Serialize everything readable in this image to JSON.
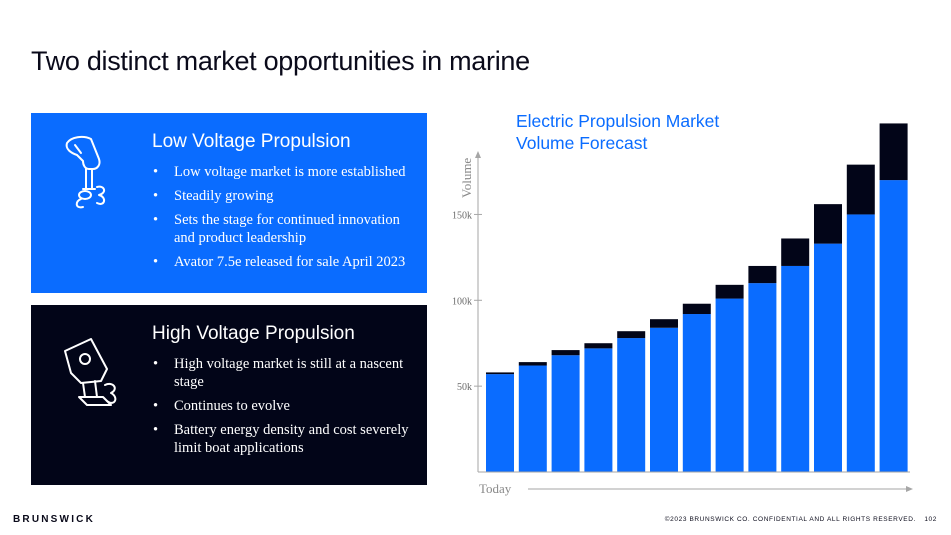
{
  "slide": {
    "title": "Two distinct market opportunities in marine"
  },
  "panels": {
    "low": {
      "heading": "Low Voltage Propulsion",
      "icon": "outboard-motor-icon",
      "bullets": [
        "Low voltage market is more established",
        "Steadily growing",
        "Sets the stage for continued innovation and product leadership",
        "Avator 7.5e released for sale April 2023"
      ]
    },
    "high": {
      "heading": "High Voltage Propulsion",
      "icon": "high-voltage-motor-icon",
      "bullets": [
        "High voltage market is still at a nascent stage",
        "Continues to evolve",
        "Battery energy density and cost severely limit boat applications"
      ]
    }
  },
  "colors": {
    "accent": "#0a6cff",
    "dark": "#020518",
    "axis": "#a6a6a6"
  },
  "chart_data": {
    "type": "bar",
    "title": "Electric Propulsion Market Volume Forecast",
    "xlabel": "Today",
    "ylabel": "Volume",
    "yticks": [
      "50k",
      "100k",
      "150k"
    ],
    "ytick_values": [
      50000,
      100000,
      150000
    ],
    "ylim": [
      0,
      205000
    ],
    "stacked": true,
    "series": [
      {
        "color": "#0a6cff",
        "values": [
          57000,
          62000,
          68000,
          72000,
          78000,
          84000,
          92000,
          101000,
          110000,
          120000,
          133000,
          150000,
          170000
        ]
      },
      {
        "color": "#020518",
        "values": [
          1000,
          2000,
          3000,
          3000,
          4000,
          5000,
          6000,
          8000,
          10000,
          16000,
          23000,
          29000,
          33000
        ]
      }
    ]
  },
  "footer": {
    "logo": "BRUNSWICK",
    "note": "©2023 BRUNSWICK CO. CONFIDENTIAL AND ALL RIGHTS RESERVED.",
    "page": "102"
  }
}
